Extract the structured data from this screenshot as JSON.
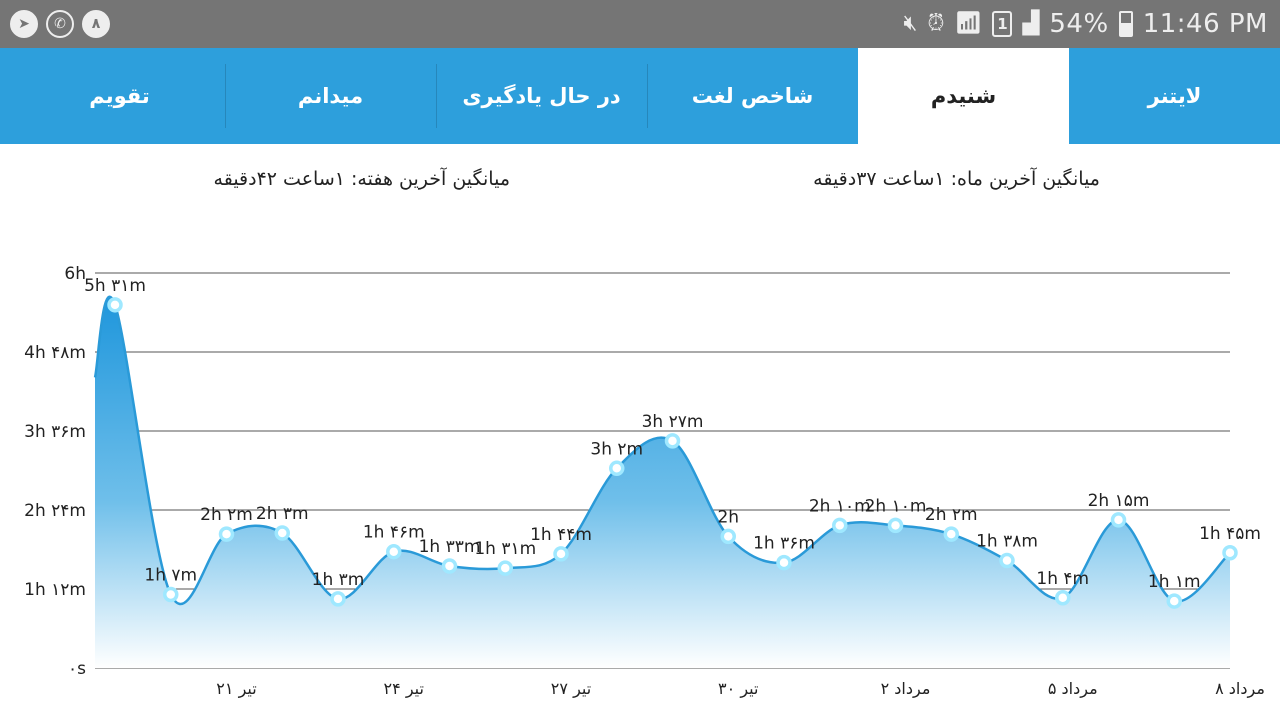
{
  "status_bar": {
    "left_icons": [
      "telegram-icon",
      "whatsapp-icon",
      "number-icon"
    ],
    "number_badge": "۸",
    "sim_label": "1",
    "battery": "54%",
    "battery_level": 0.54,
    "time": "11:46 PM"
  },
  "tabs": [
    {
      "label": "لایتنر",
      "active": false
    },
    {
      "label": "شنیدم",
      "active": true
    },
    {
      "label": "شاخص لغت",
      "active": false
    },
    {
      "label": "در حال یادگیری",
      "active": false
    },
    {
      "label": "میدانم",
      "active": false
    },
    {
      "label": "تقویم",
      "active": false
    }
  ],
  "averages": {
    "last_month": "میانگین آخرین ماه: ۱ساعت ۳۷دقیقه",
    "last_week": "میانگین آخرین هفته: ۱ساعت ۴۲دقیقه"
  },
  "colors": {
    "accent": "#2d9fdc",
    "line": "#2a9ad8",
    "point": "#9fe8ff"
  },
  "chart_data": {
    "type": "area",
    "ylim_minutes": [
      0,
      360
    ],
    "y_ticks": [
      {
        "value": 0,
        "label": "۰s"
      },
      {
        "value": 72,
        "label": "1h ۱۲m"
      },
      {
        "value": 144,
        "label": "2h ۲۴m"
      },
      {
        "value": 216,
        "label": "3h ۳۶m"
      },
      {
        "value": 288,
        "label": "4h ۴۸m"
      },
      {
        "value": 360,
        "label": "6h"
      }
    ],
    "x_ticks": [
      {
        "index": 2,
        "label": "۲۱ تیر"
      },
      {
        "index": 5,
        "label": "۲۴ تیر"
      },
      {
        "index": 8,
        "label": "۲۷ تیر"
      },
      {
        "index": 11,
        "label": "۳۰ تیر"
      },
      {
        "index": 14,
        "label": "۲ مرداد"
      },
      {
        "index": 17,
        "label": "۵ مرداد"
      },
      {
        "index": 20,
        "label": "۸ مرداد"
      }
    ],
    "points": [
      {
        "minutes": 331,
        "label": "5h ۳۱m"
      },
      {
        "minutes": 67,
        "label": "1h ۷m"
      },
      {
        "minutes": 122,
        "label": "2h ۲m"
      },
      {
        "minutes": 123,
        "label": "2h ۳m"
      },
      {
        "minutes": 63,
        "label": "1h ۳m"
      },
      {
        "minutes": 106,
        "label": "1h ۴۶m"
      },
      {
        "minutes": 93,
        "label": "1h ۳۳m"
      },
      {
        "minutes": 91,
        "label": "1h ۳۱m"
      },
      {
        "minutes": 104,
        "label": "1h ۴۴m"
      },
      {
        "minutes": 182,
        "label": "3h ۲m"
      },
      {
        "minutes": 207,
        "label": "3h ۲۷m"
      },
      {
        "minutes": 120,
        "label": "2h"
      },
      {
        "minutes": 96,
        "label": "1h ۳۶m"
      },
      {
        "minutes": 130,
        "label": "2h ۱۰m"
      },
      {
        "minutes": 130,
        "label": "2h ۱۰m"
      },
      {
        "minutes": 122,
        "label": "2h ۲m"
      },
      {
        "minutes": 98,
        "label": "1h ۳۸m"
      },
      {
        "minutes": 64,
        "label": "1h ۴m"
      },
      {
        "minutes": 135,
        "label": "2h ۱۵m"
      },
      {
        "minutes": 61,
        "label": "1h ۱m"
      },
      {
        "minutes": 105,
        "label": "1h ۴۵m"
      }
    ]
  }
}
